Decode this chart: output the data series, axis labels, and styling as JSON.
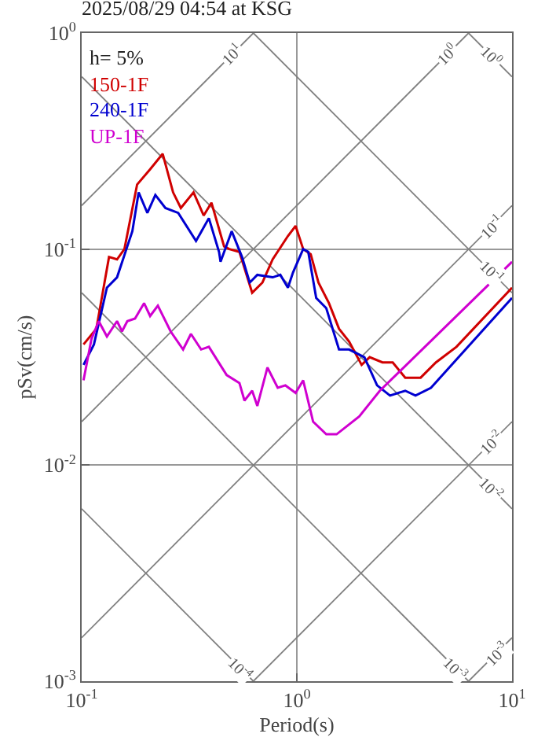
{
  "chart_data": {
    "type": "line",
    "title": "2025/08/29 04:54 at KSG",
    "xlabel": "Period(s)",
    "ylabel": "pSv(cm/s)",
    "log": "xy",
    "grid": true,
    "legend": "top left",
    "marker": "none",
    "line_style": "solid",
    "xlim": [
      0.1,
      10
    ],
    "ylim": [
      0.001,
      1
    ],
    "xticks": [
      {
        "value": 0.1,
        "label": "10$^{-1}$"
      },
      {
        "value": 1,
        "label": "10$^{0}$"
      },
      {
        "value": 10,
        "label": "10$^{1}$"
      }
    ],
    "yticks": [
      {
        "value": 0.001,
        "label": "10$^{-3}$"
      },
      {
        "value": 0.01,
        "label": "10$^{-2}$"
      },
      {
        "value": 0.1,
        "label": "10$^{-1}$"
      },
      {
        "value": 1,
        "label": "10$^{0}$"
      }
    ],
    "annotations": [
      "h= 5%",
      {
        "text": "10$^{1}$",
        "x": 0.5,
        "y": 0.795
      },
      {
        "text": "10$^{0}$",
        "x": 5,
        "y": 0.795
      },
      {
        "text": "10$^{0}$",
        "x": 8,
        "y": 0.785
      },
      {
        "text": "10$^{-1}$",
        "x": 8,
        "y": 0.127
      },
      {
        "text": "10$^{-1}$",
        "x": 8,
        "y": 0.0785
      },
      {
        "text": "10$^{-2}$",
        "x": 8,
        "y": 0.0127
      },
      {
        "text": "10$^{-2}$",
        "x": 8,
        "y": 0.00785
      },
      {
        "text": "10$^{-3}$",
        "x": 5.5,
        "y": 0.00114
      },
      {
        "text": "10$^{-3}$",
        "x": 8.5,
        "y": 0.00135
      },
      {
        "text": "10$^{-4}$",
        "x": 0.55,
        "y": 0.00114
      }
    ],
    "series": [
      {
        "color": "#808080",
        "x": [
          0.1,
          0.628
        ],
        "values": [
          0.159,
          1
        ]
      },
      {
        "color": "#808080",
        "x": [
          0.1,
          6.28
        ],
        "values": [
          0.0159,
          1
        ]
      },
      {
        "color": "#808080",
        "x": [
          0.1,
          10
        ],
        "values": [
          0.00159,
          0.159
        ]
      },
      {
        "color": "#808080",
        "x": [
          0.628,
          10
        ],
        "values": [
          0.001,
          0.0159
        ]
      },
      {
        "color": "#808080",
        "x": [
          6.28,
          10
        ],
        "values": [
          0.001,
          0.00159
        ]
      },
      {
        "color": "#808080",
        "x": [
          6.28,
          10
        ],
        "values": [
          1,
          0.628
        ]
      },
      {
        "color": "#808080",
        "x": [
          0.628,
          10
        ],
        "values": [
          1,
          0.0628
        ]
      },
      {
        "color": "#808080",
        "x": [
          0.1,
          10
        ],
        "values": [
          0.628,
          0.00628
        ]
      },
      {
        "color": "#808080",
        "x": [
          0.1,
          6.28
        ],
        "values": [
          0.0628,
          0.001
        ]
      },
      {
        "color": "#808080",
        "x": [
          0.1,
          0.628
        ],
        "values": [
          0.00628,
          0.001
        ]
      },
      {
        "name": "150-1F",
        "color": "#d00000",
        "x": [
          0.102,
          0.117,
          0.134,
          0.146,
          0.158,
          0.181,
          0.208,
          0.238,
          0.266,
          0.289,
          0.331,
          0.369,
          0.401,
          0.459,
          0.485,
          0.541,
          0.62,
          0.692,
          0.772,
          0.909,
          0.987,
          1.07,
          1.16,
          1.26,
          1.41,
          1.57,
          1.75,
          2.0,
          2.18,
          2.5,
          2.79,
          3.19,
          3.76,
          4.43,
          5.52,
          10
        ],
        "values": [
          0.0362,
          0.0428,
          0.092,
          0.0896,
          0.1,
          0.199,
          0.234,
          0.276,
          0.183,
          0.155,
          0.183,
          0.143,
          0.164,
          0.103,
          0.1,
          0.097,
          0.0628,
          0.07,
          0.0896,
          0.115,
          0.128,
          0.1,
          0.0947,
          0.07,
          0.0562,
          0.0428,
          0.0373,
          0.0291,
          0.0316,
          0.0299,
          0.0299,
          0.0254,
          0.0254,
          0.0299,
          0.0353,
          0.0663
        ]
      },
      {
        "name": "240-1F",
        "color": "#0000d0",
        "x": [
          0.102,
          0.114,
          0.131,
          0.146,
          0.163,
          0.172,
          0.184,
          0.202,
          0.22,
          0.245,
          0.281,
          0.34,
          0.39,
          0.435,
          0.442,
          0.498,
          0.556,
          0.604,
          0.655,
          0.772,
          0.838,
          0.909,
          0.96,
          1.07,
          1.13,
          1.23,
          1.37,
          1.57,
          1.75,
          2.06,
          2.36,
          2.71,
          3.19,
          3.56,
          4.2,
          10
        ],
        "values": [
          0.0291,
          0.0362,
          0.0663,
          0.074,
          0.103,
          0.121,
          0.183,
          0.147,
          0.178,
          0.155,
          0.147,
          0.109,
          0.139,
          0.097,
          0.0873,
          0.121,
          0.092,
          0.07,
          0.076,
          0.074,
          0.076,
          0.0663,
          0.078,
          0.1,
          0.097,
          0.0594,
          0.0533,
          0.0343,
          0.0343,
          0.0316,
          0.0234,
          0.021,
          0.0221,
          0.021,
          0.0228,
          0.0594
        ]
      },
      {
        "name": "UP-1F",
        "color": "#d000d0",
        "x": [
          0.102,
          0.111,
          0.12,
          0.131,
          0.146,
          0.154,
          0.163,
          0.177,
          0.195,
          0.208,
          0.226,
          0.259,
          0.296,
          0.322,
          0.359,
          0.39,
          0.472,
          0.541,
          0.571,
          0.62,
          0.655,
          0.73,
          0.815,
          0.885,
          0.987,
          1.07,
          1.19,
          1.37,
          1.53,
          1.95,
          2.43,
          10
        ],
        "values": [
          0.0247,
          0.0383,
          0.0464,
          0.0394,
          0.0464,
          0.0416,
          0.0464,
          0.0477,
          0.0562,
          0.049,
          0.0547,
          0.0416,
          0.0343,
          0.0405,
          0.0343,
          0.0353,
          0.0261,
          0.024,
          0.0199,
          0.0221,
          0.0188,
          0.0283,
          0.0228,
          0.0234,
          0.0216,
          0.0247,
          0.0159,
          0.0139,
          0.0139,
          0.0168,
          0.0221,
          0.0873
        ]
      }
    ]
  }
}
